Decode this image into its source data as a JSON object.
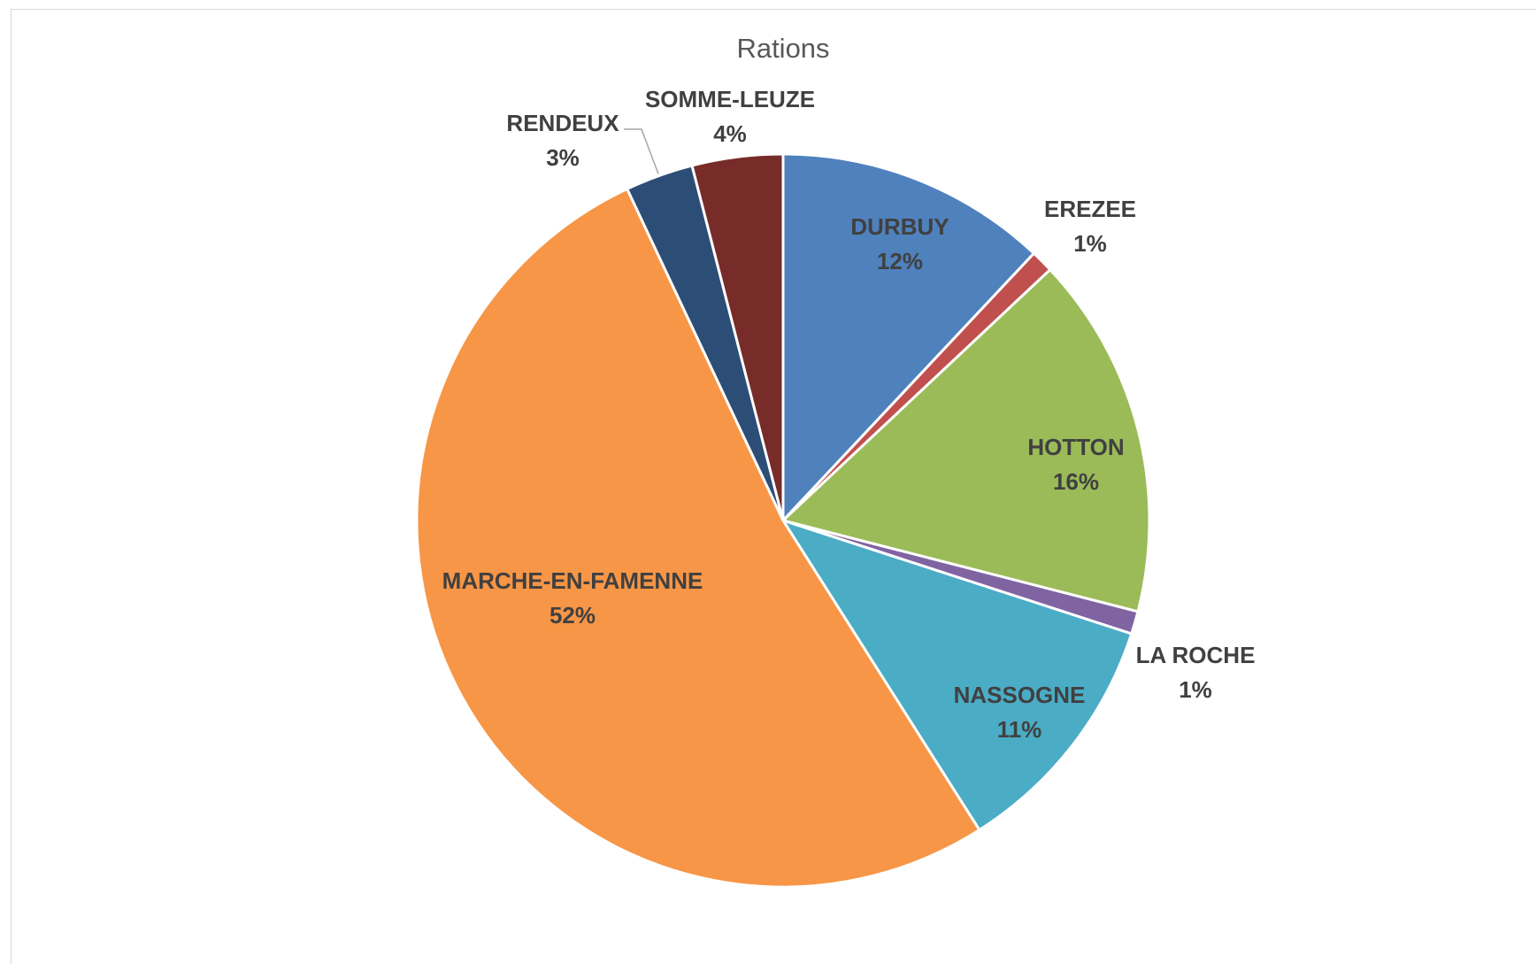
{
  "chart_data": {
    "type": "pie",
    "title": "Rations",
    "slices": [
      {
        "name": "DURBUY",
        "value": 12,
        "label": "12%",
        "color": "#4f81bd"
      },
      {
        "name": "EREZEE",
        "value": 1,
        "label": "1%",
        "color": "#c0504d"
      },
      {
        "name": "HOTTON",
        "value": 16,
        "label": "16%",
        "color": "#9bbb59"
      },
      {
        "name": "LA ROCHE",
        "value": 1,
        "label": "1%",
        "color": "#8064a2"
      },
      {
        "name": "NASSOGNE",
        "value": 11,
        "label": "11%",
        "color": "#4bacc6"
      },
      {
        "name": "MARCHE-EN-FAMENNE",
        "value": 52,
        "label": "52%",
        "color": "#f79646"
      },
      {
        "name": "RENDEUX",
        "value": 3,
        "label": "3%",
        "color": "#2c4d75"
      },
      {
        "name": "SOMME-LEUZE",
        "value": 4,
        "label": "4%",
        "color": "#772c2a"
      }
    ],
    "legend": "none"
  }
}
